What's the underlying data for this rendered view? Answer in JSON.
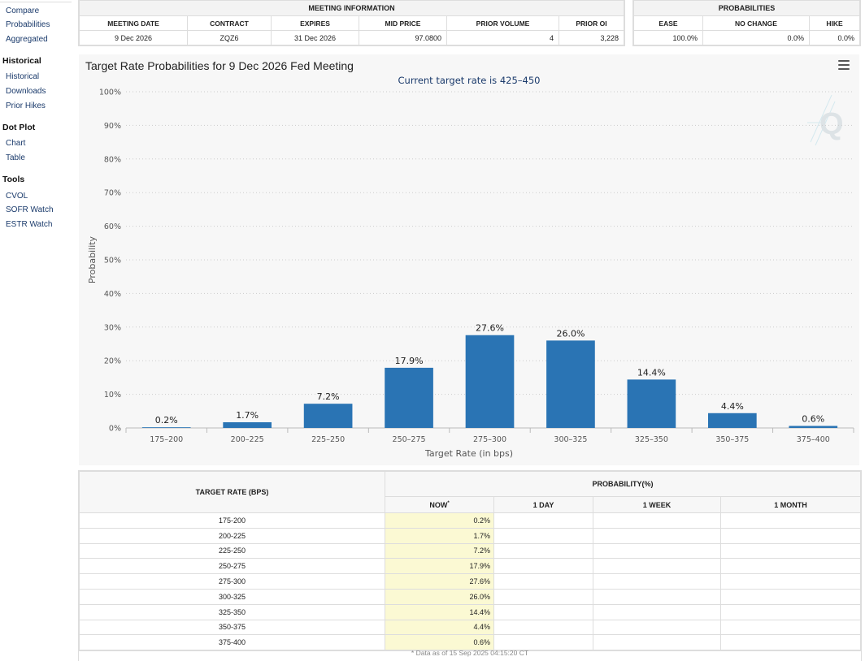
{
  "sidebar": {
    "links_top": [
      "Compare",
      "Probabilities",
      "Aggregated"
    ],
    "sections": [
      {
        "title": "Historical",
        "items": [
          "Historical",
          "Downloads",
          "Prior Hikes"
        ]
      },
      {
        "title": "Dot Plot",
        "items": [
          "Chart",
          "Table"
        ]
      },
      {
        "title": "Tools",
        "items": [
          "CVOL",
          "SOFR Watch",
          "ESTR Watch"
        ]
      }
    ]
  },
  "meeting_info": {
    "title": "MEETING INFORMATION",
    "headers": [
      "MEETING DATE",
      "CONTRACT",
      "EXPIRES",
      "MID PRICE",
      "PRIOR VOLUME",
      "PRIOR OI"
    ],
    "row": [
      "9 Dec 2026",
      "ZQZ6",
      "31 Dec 2026",
      "97.0800",
      "4",
      "3,228"
    ]
  },
  "probabilities": {
    "title": "PROBABILITIES",
    "headers": [
      "EASE",
      "NO CHANGE",
      "HIKE"
    ],
    "row": [
      "100.0%",
      "0.0%",
      "0.0%"
    ]
  },
  "chart_title": "Target Rate Probabilities for 9 Dec 2026 Fed Meeting",
  "chart_data": {
    "type": "bar",
    "title": "Target Rate Probabilities for 9 Dec 2026 Fed Meeting",
    "subtitle": "Current target rate is 425–450",
    "xlabel": "Target Rate (in bps)",
    "ylabel": "Probability",
    "categories": [
      "175–200",
      "200–225",
      "225–250",
      "250–275",
      "275–300",
      "300–325",
      "325–350",
      "350–375",
      "375–400"
    ],
    "values": [
      0.2,
      1.7,
      7.2,
      17.9,
      27.6,
      26.0,
      14.4,
      4.4,
      0.6
    ],
    "data_labels": [
      "0.2%",
      "1.7%",
      "7.2%",
      "17.9%",
      "27.6%",
      "26.0%",
      "14.4%",
      "4.4%",
      "0.6%"
    ],
    "ylim": [
      0,
      100
    ],
    "yticks": [
      "0%",
      "10%",
      "20%",
      "30%",
      "40%",
      "50%",
      "60%",
      "70%",
      "80%",
      "90%",
      "100%"
    ],
    "bar_color": "#2a74b4",
    "grid": "dotted horizontal"
  },
  "prob_table": {
    "header_rate": "TARGET RATE (BPS)",
    "header_prob": "PROBABILITY(%)",
    "cols": [
      "NOW",
      "1 DAY",
      "1 WEEK",
      "1 MONTH"
    ],
    "now_marker": "*",
    "rows": [
      {
        "rate": "175-200",
        "now": "0.2%"
      },
      {
        "rate": "200-225",
        "now": "1.7%"
      },
      {
        "rate": "225-250",
        "now": "7.2%"
      },
      {
        "rate": "250-275",
        "now": "17.9%"
      },
      {
        "rate": "275-300",
        "now": "27.6%"
      },
      {
        "rate": "300-325",
        "now": "26.0%"
      },
      {
        "rate": "325-350",
        "now": "14.4%"
      },
      {
        "rate": "350-375",
        "now": "4.4%"
      },
      {
        "rate": "375-400",
        "now": "0.6%"
      }
    ],
    "footnote": "* Data as of 15 Sep 2025 04:15:20 CT"
  }
}
